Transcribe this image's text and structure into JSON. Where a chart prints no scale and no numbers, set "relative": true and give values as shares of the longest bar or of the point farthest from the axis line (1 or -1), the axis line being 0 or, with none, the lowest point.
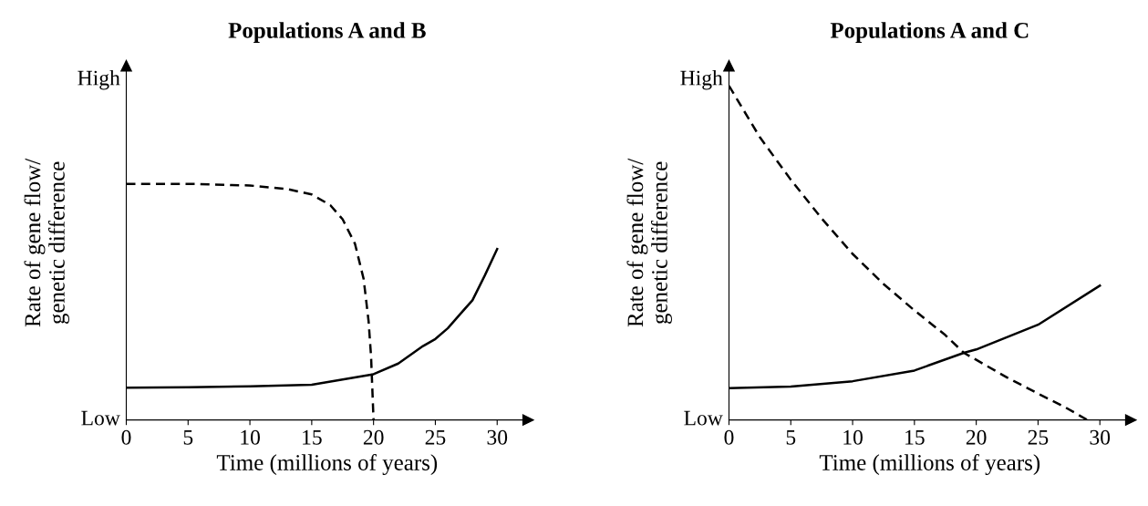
{
  "chart_data": [
    {
      "type": "line",
      "title": "Populations A and B",
      "xlabel": "Time (millions of years)",
      "ylabel": "Rate of gene flow/\ngenetic difference",
      "xlim": [
        0,
        32.5
      ],
      "xticks": [
        0,
        5,
        10,
        15,
        20,
        25,
        30
      ],
      "relative": true,
      "annotations": [
        "High",
        "Low"
      ],
      "grid": false,
      "legend": false,
      "marker": "none",
      "series": [
        {
          "color": "#000000",
          "line_style": "dashed",
          "x": [
            0,
            5,
            10,
            13,
            15,
            16.5,
            17.5,
            18.5,
            19.2,
            19.6,
            19.8,
            20
          ],
          "values": [
            1,
            1,
            0.993,
            0.978,
            0.955,
            0.91,
            0.85,
            0.746,
            0.597,
            0.418,
            0.269,
            0
          ]
        },
        {
          "color": "#000000",
          "line_style": "solid",
          "x": [
            0,
            5,
            10,
            15,
            20,
            22,
            24,
            25,
            26,
            27,
            28,
            29,
            30
          ],
          "values": [
            0.137,
            0.139,
            0.142,
            0.149,
            0.194,
            0.239,
            0.313,
            0.343,
            0.388,
            0.448,
            0.507,
            0.612,
            0.724
          ]
        }
      ]
    },
    {
      "type": "line",
      "title": "Populations A and C",
      "xlabel": "Time (millions of years)",
      "ylabel": "Rate of gene flow/\ngenetic difference",
      "xlim": [
        0,
        32.5
      ],
      "xticks": [
        0,
        5,
        10,
        15,
        20,
        25,
        30
      ],
      "relative": true,
      "annotations": [
        "High",
        "Low"
      ],
      "grid": false,
      "legend": false,
      "marker": "none",
      "series": [
        {
          "color": "#000000",
          "line_style": "dashed",
          "x": [
            0,
            2.5,
            5,
            7.5,
            10,
            12.5,
            15,
            17.5,
            19,
            20,
            22.5,
            25,
            27,
            29
          ],
          "values": [
            1,
            0.846,
            0.719,
            0.603,
            0.497,
            0.407,
            0.328,
            0.254,
            0.201,
            0.18,
            0.127,
            0.079,
            0.042,
            0
          ]
        },
        {
          "color": "#000000",
          "line_style": "solid",
          "x": [
            0,
            5,
            10,
            15,
            19,
            20,
            25,
            30
          ],
          "values": [
            0.095,
            0.1,
            0.116,
            0.148,
            0.201,
            0.211,
            0.285,
            0.402
          ]
        }
      ]
    }
  ]
}
